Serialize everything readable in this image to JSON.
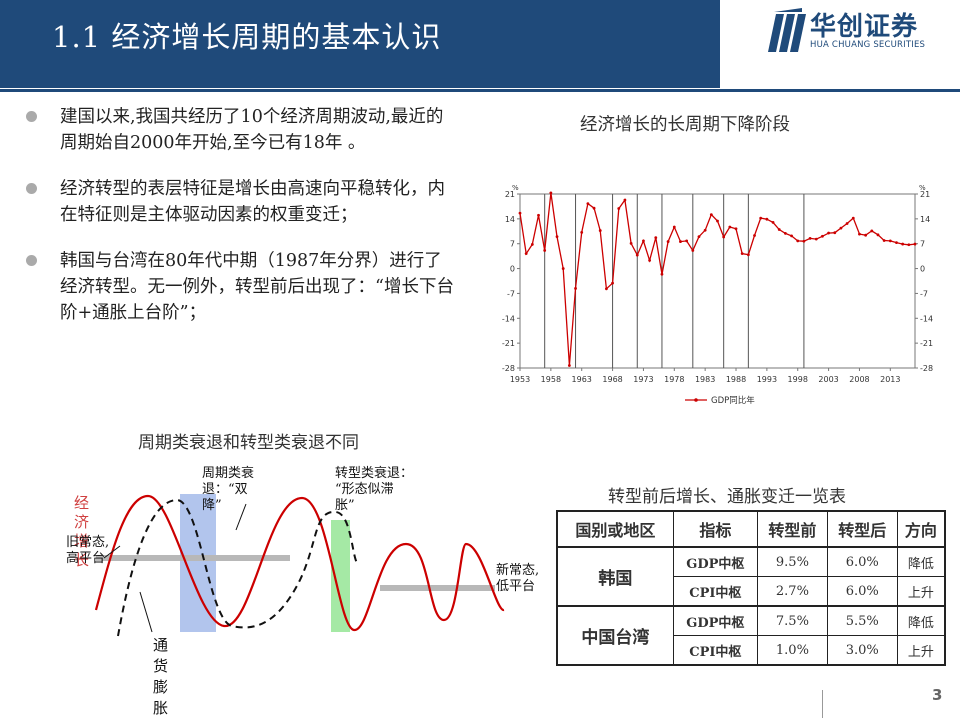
{
  "header": {
    "title": "1.1 经济增长周期的基本认识",
    "logo_cn": "华创证券",
    "logo_en": "HUA CHUANG SECURITIES"
  },
  "bullets": [
    "建国以来,我国共经历了10个经济周期波动,最近的周期始自2000年开始,至今已有18年 。",
    "经济转型的表层特征是增长由高速向平稳转化，内在特征则是主体驱动因素的权重变迁；",
    "韩国与台湾在80年代中期（1987年分界）进行了经济转型。无一例外，转型前后出现了：“增长下台阶+通胀上台阶”；"
  ],
  "gdp_chart_title": "经济增长的长周期下降阶段",
  "cycle_chart": {
    "title": "周期类衰退和转型类衰退不同",
    "labels": {
      "growth": "经济增长",
      "old_normal": "旧常态,\n高平台",
      "inflation": "通货膨胀",
      "cyclical": "周期类衰\n退：“双\n降”",
      "transition": "转型类衰退：\n“形态似滞\n胀”",
      "new_normal": "新常态,\n低平台"
    },
    "colors": {
      "growth": "#cc0000",
      "inflation": "#000000",
      "band_blue": "#9fb7e8",
      "band_green": "#8fe38f",
      "platform": "#b8b8b8"
    }
  },
  "table": {
    "title": "转型前后增长、通胀变迁一览表",
    "headers": [
      "国别或地区",
      "指标",
      "转型前",
      "转型后",
      "方向"
    ],
    "groups": [
      {
        "region": "韩国",
        "rows": [
          {
            "metric": "GDP中枢",
            "before": "9.5%",
            "after": "6.0%",
            "direction": "降低"
          },
          {
            "metric": "CPI中枢",
            "before": "2.7%",
            "after": "6.0%",
            "direction": "上升"
          }
        ]
      },
      {
        "region": "中国台湾",
        "rows": [
          {
            "metric": "GDP中枢",
            "before": "7.5%",
            "after": "5.5%",
            "direction": "降低"
          },
          {
            "metric": "CPI中枢",
            "before": "1.0%",
            "after": "3.0%",
            "direction": "上升"
          }
        ]
      }
    ]
  },
  "page_number": "3",
  "chart_data": {
    "type": "line",
    "title": "",
    "xlabel": "",
    "ylabel": "%",
    "ylim": [
      -28,
      21
    ],
    "yticks": [
      21,
      14,
      7,
      0,
      -7,
      -14,
      -21,
      -28
    ],
    "xticks": [
      "1953",
      "1958",
      "1963",
      "1968",
      "1973",
      "1978",
      "1983",
      "1988",
      "1993",
      "1998",
      "2003",
      "2008",
      "2013"
    ],
    "cycle_divider_years": [
      1957,
      1962,
      1968,
      1972,
      1976,
      1981,
      1986,
      1990,
      1999
    ],
    "series": [
      {
        "name": "GDP同比年",
        "color": "#cc0000",
        "x": [
          1953,
          1954,
          1955,
          1956,
          1957,
          1958,
          1959,
          1960,
          1961,
          1962,
          1963,
          1964,
          1965,
          1966,
          1967,
          1968,
          1969,
          1970,
          1971,
          1972,
          1973,
          1974,
          1975,
          1976,
          1977,
          1978,
          1979,
          1980,
          1981,
          1982,
          1983,
          1984,
          1985,
          1986,
          1987,
          1988,
          1989,
          1990,
          1991,
          1992,
          1993,
          1994,
          1995,
          1996,
          1997,
          1998,
          1999,
          2000,
          2001,
          2002,
          2003,
          2004,
          2005,
          2006,
          2007,
          2008,
          2009,
          2010,
          2011,
          2012,
          2013,
          2014,
          2015,
          2016,
          2017
        ],
        "y": [
          15.6,
          4.2,
          6.8,
          15.0,
          5.1,
          21.3,
          9.0,
          0.0,
          -27.3,
          -5.6,
          10.2,
          18.3,
          17.0,
          10.7,
          -5.7,
          -4.1,
          16.9,
          19.3,
          7.1,
          3.8,
          7.8,
          2.3,
          8.7,
          -1.6,
          7.6,
          11.7,
          7.6,
          7.8,
          5.1,
          9.0,
          10.8,
          15.2,
          13.4,
          8.9,
          11.7,
          11.2,
          4.2,
          3.9,
          9.3,
          14.2,
          13.9,
          13.0,
          11.0,
          9.9,
          9.2,
          7.8,
          7.7,
          8.5,
          8.3,
          9.1,
          10.0,
          10.1,
          11.4,
          12.7,
          14.2,
          9.7,
          9.4,
          10.6,
          9.5,
          7.9,
          7.8,
          7.3,
          6.9,
          6.7,
          6.9
        ]
      }
    ],
    "legend": "bottom"
  }
}
